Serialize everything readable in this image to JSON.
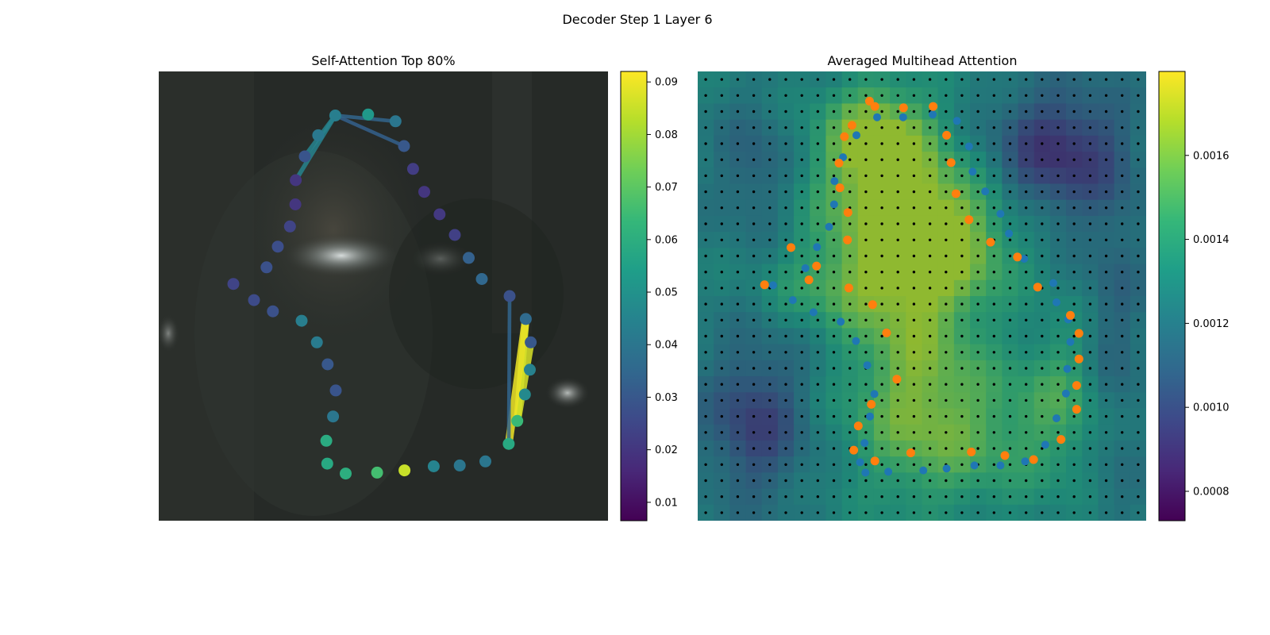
{
  "figure": {
    "suptitle": "Decoder Step 1 Layer 6"
  },
  "colors": {
    "viridis": [
      "#440154",
      "#482878",
      "#3e4989",
      "#31688e",
      "#26828e",
      "#1f9e89",
      "#35b779",
      "#6ece58",
      "#b5de2b",
      "#fde725"
    ],
    "ref_points": "#1f77b4",
    "pred_points": "#ff7f0e",
    "grid_dots": "#000000"
  },
  "chart_data": [
    {
      "type": "scatter",
      "title": "Self-Attention Top 80%",
      "colorbar": {
        "min": 0.0065,
        "max": 0.092,
        "ticks": [
          "0.01",
          "0.02",
          "0.03",
          "0.04",
          "0.05",
          "0.06",
          "0.07",
          "0.08",
          "0.09"
        ]
      },
      "points": [
        {
          "x": 0.393,
          "y": 0.098,
          "v": 0.043
        },
        {
          "x": 0.466,
          "y": 0.096,
          "v": 0.052
        },
        {
          "x": 0.527,
          "y": 0.111,
          "v": 0.04
        },
        {
          "x": 0.546,
          "y": 0.166,
          "v": 0.03
        },
        {
          "x": 0.566,
          "y": 0.217,
          "v": 0.022
        },
        {
          "x": 0.591,
          "y": 0.268,
          "v": 0.02
        },
        {
          "x": 0.625,
          "y": 0.318,
          "v": 0.021
        },
        {
          "x": 0.659,
          "y": 0.364,
          "v": 0.023
        },
        {
          "x": 0.69,
          "y": 0.415,
          "v": 0.033
        },
        {
          "x": 0.719,
          "y": 0.462,
          "v": 0.035
        },
        {
          "x": 0.781,
          "y": 0.5,
          "v": 0.028
        },
        {
          "x": 0.817,
          "y": 0.551,
          "v": 0.036
        },
        {
          "x": 0.828,
          "y": 0.603,
          "v": 0.03
        },
        {
          "x": 0.826,
          "y": 0.664,
          "v": 0.044
        },
        {
          "x": 0.815,
          "y": 0.719,
          "v": 0.047
        },
        {
          "x": 0.798,
          "y": 0.778,
          "v": 0.064
        },
        {
          "x": 0.779,
          "y": 0.829,
          "v": 0.058
        },
        {
          "x": 0.727,
          "y": 0.868,
          "v": 0.04
        },
        {
          "x": 0.67,
          "y": 0.877,
          "v": 0.04
        },
        {
          "x": 0.612,
          "y": 0.879,
          "v": 0.045
        },
        {
          "x": 0.547,
          "y": 0.888,
          "v": 0.085
        },
        {
          "x": 0.486,
          "y": 0.893,
          "v": 0.066
        },
        {
          "x": 0.416,
          "y": 0.895,
          "v": 0.06
        },
        {
          "x": 0.375,
          "y": 0.873,
          "v": 0.058
        },
        {
          "x": 0.373,
          "y": 0.822,
          "v": 0.059
        },
        {
          "x": 0.388,
          "y": 0.768,
          "v": 0.04
        },
        {
          "x": 0.394,
          "y": 0.71,
          "v": 0.029
        },
        {
          "x": 0.376,
          "y": 0.652,
          "v": 0.03
        },
        {
          "x": 0.352,
          "y": 0.603,
          "v": 0.042
        },
        {
          "x": 0.318,
          "y": 0.555,
          "v": 0.043
        },
        {
          "x": 0.254,
          "y": 0.534,
          "v": 0.028
        },
        {
          "x": 0.212,
          "y": 0.509,
          "v": 0.026
        },
        {
          "x": 0.166,
          "y": 0.473,
          "v": 0.024
        },
        {
          "x": 0.24,
          "y": 0.436,
          "v": 0.028
        },
        {
          "x": 0.265,
          "y": 0.39,
          "v": 0.027
        },
        {
          "x": 0.292,
          "y": 0.345,
          "v": 0.024
        },
        {
          "x": 0.304,
          "y": 0.296,
          "v": 0.02
        },
        {
          "x": 0.305,
          "y": 0.242,
          "v": 0.02
        },
        {
          "x": 0.325,
          "y": 0.189,
          "v": 0.029
        },
        {
          "x": 0.355,
          "y": 0.142,
          "v": 0.041
        }
      ],
      "links": [
        {
          "from": 0,
          "to": 38,
          "v": 0.045
        },
        {
          "from": 0,
          "to": 37,
          "v": 0.045
        },
        {
          "from": 0,
          "to": 3,
          "v": 0.033
        },
        {
          "from": 0,
          "to": 2,
          "v": 0.034
        },
        {
          "from": 15,
          "to": 11,
          "v": 0.085
        },
        {
          "from": 15,
          "to": 12,
          "v": 0.087
        },
        {
          "from": 16,
          "to": 11,
          "v": 0.09
        },
        {
          "from": 16,
          "to": 10,
          "v": 0.034
        }
      ]
    },
    {
      "type": "heatmap",
      "title": "Averaged Multihead Attention",
      "colorbar": {
        "min": 0.00073,
        "max": 0.0018,
        "ticks": [
          "0.0008",
          "0.0010",
          "0.0012",
          "0.0014",
          "0.0016"
        ]
      },
      "grid_size": 28,
      "ref_points": [
        [
          0.458,
          0.102
        ],
        [
          0.524,
          0.096
        ],
        [
          0.578,
          0.11
        ],
        [
          0.605,
          0.167
        ],
        [
          0.613,
          0.223
        ],
        [
          0.641,
          0.267
        ],
        [
          0.675,
          0.317
        ],
        [
          0.694,
          0.361
        ],
        [
          0.728,
          0.417
        ],
        [
          0.793,
          0.471
        ],
        [
          0.8,
          0.514
        ],
        [
          0.826,
          0.552
        ],
        [
          0.831,
          0.602
        ],
        [
          0.824,
          0.662
        ],
        [
          0.821,
          0.717
        ],
        [
          0.8,
          0.772
        ],
        [
          0.775,
          0.831
        ],
        [
          0.73,
          0.868
        ],
        [
          0.675,
          0.877
        ],
        [
          0.617,
          0.877
        ],
        [
          0.555,
          0.884
        ],
        [
          0.503,
          0.888
        ],
        [
          0.425,
          0.891
        ],
        [
          0.374,
          0.893
        ],
        [
          0.362,
          0.87
        ],
        [
          0.372,
          0.827
        ],
        [
          0.384,
          0.768
        ],
        [
          0.394,
          0.718
        ],
        [
          0.378,
          0.654
        ],
        [
          0.353,
          0.6
        ],
        [
          0.319,
          0.557
        ],
        [
          0.258,
          0.536
        ],
        [
          0.212,
          0.509
        ],
        [
          0.168,
          0.476
        ],
        [
          0.24,
          0.438
        ],
        [
          0.266,
          0.391
        ],
        [
          0.293,
          0.346
        ],
        [
          0.304,
          0.296
        ],
        [
          0.305,
          0.244
        ],
        [
          0.324,
          0.191
        ],
        [
          0.354,
          0.142
        ],
        [
          0.4,
          0.102
        ]
      ],
      "pred_points": [
        [
          0.383,
          0.066
        ],
        [
          0.459,
          0.081
        ],
        [
          0.525,
          0.078
        ],
        [
          0.555,
          0.142
        ],
        [
          0.565,
          0.203
        ],
        [
          0.576,
          0.272
        ],
        [
          0.605,
          0.33
        ],
        [
          0.653,
          0.38
        ],
        [
          0.713,
          0.413
        ],
        [
          0.758,
          0.48
        ],
        [
          0.831,
          0.543
        ],
        [
          0.85,
          0.583
        ],
        [
          0.85,
          0.64
        ],
        [
          0.845,
          0.699
        ],
        [
          0.845,
          0.752
        ],
        [
          0.81,
          0.819
        ],
        [
          0.749,
          0.864
        ],
        [
          0.685,
          0.855
        ],
        [
          0.61,
          0.847
        ],
        [
          0.475,
          0.849
        ],
        [
          0.395,
          0.867
        ],
        [
          0.348,
          0.843
        ],
        [
          0.358,
          0.789
        ],
        [
          0.387,
          0.741
        ],
        [
          0.444,
          0.685
        ],
        [
          0.421,
          0.582
        ],
        [
          0.39,
          0.519
        ],
        [
          0.337,
          0.482
        ],
        [
          0.265,
          0.433
        ],
        [
          0.208,
          0.392
        ],
        [
          0.149,
          0.475
        ],
        [
          0.248,
          0.464
        ],
        [
          0.334,
          0.375
        ],
        [
          0.335,
          0.314
        ],
        [
          0.317,
          0.259
        ],
        [
          0.315,
          0.204
        ],
        [
          0.327,
          0.145
        ],
        [
          0.344,
          0.12
        ],
        [
          0.395,
          0.078
        ]
      ],
      "heat_blobs": [
        {
          "cx": 0.42,
          "cy": 0.3,
          "sx": 0.12,
          "sy": 0.14,
          "a": 0.9
        },
        {
          "cx": 0.4,
          "cy": 0.14,
          "sx": 0.08,
          "sy": 0.08,
          "a": 0.8
        },
        {
          "cx": 0.58,
          "cy": 0.38,
          "sx": 0.1,
          "sy": 0.1,
          "a": 0.7
        },
        {
          "cx": 0.48,
          "cy": 0.62,
          "sx": 0.1,
          "sy": 0.2,
          "a": 0.7
        },
        {
          "cx": 0.62,
          "cy": 0.8,
          "sx": 0.18,
          "sy": 0.12,
          "a": 0.55
        },
        {
          "cx": 0.3,
          "cy": 0.48,
          "sx": 0.1,
          "sy": 0.06,
          "a": 0.4
        },
        {
          "cx": 0.82,
          "cy": 0.7,
          "sx": 0.06,
          "sy": 0.12,
          "a": 0.35
        },
        {
          "cx": 0.8,
          "cy": 0.18,
          "sx": 0.1,
          "sy": 0.1,
          "a": -0.9
        },
        {
          "cx": 0.13,
          "cy": 0.78,
          "sx": 0.08,
          "sy": 0.12,
          "a": -0.75
        },
        {
          "cx": 0.13,
          "cy": 0.22,
          "sx": 0.06,
          "sy": 0.1,
          "a": -0.4
        },
        {
          "cx": 0.93,
          "cy": 0.6,
          "sx": 0.05,
          "sy": 0.3,
          "a": -0.35
        }
      ]
    }
  ]
}
